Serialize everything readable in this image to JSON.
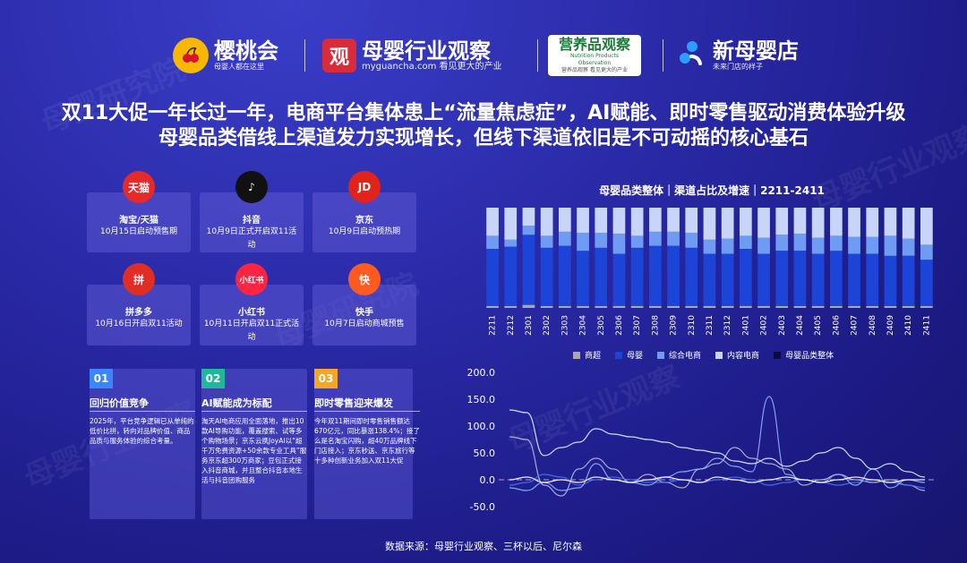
{
  "logos": {
    "yingtaohui": {
      "name": "樱桃会",
      "tagline": "母婴人都在这里"
    },
    "muying": {
      "mark": "观",
      "name": "母婴行业观察",
      "sub": "myguancha.com 看见更大的产业"
    },
    "yingyang": {
      "name": "营养品观察",
      "sub": "Nutrition Products Observation",
      "tagline": "营养品观察 看见更大的产业"
    },
    "xinmuying": {
      "name": "新母婴店",
      "tagline": "未来门店的样子"
    }
  },
  "headline": {
    "line1": "双11大促一年长过一年，电商平台集体患上“流量焦虑症”，AI赋能、即时零售驱动消费体验升级",
    "line2": "母婴品类借线上渠道发力实现增长，但线下渠道依旧是不可动摇的核心基石"
  },
  "platforms": [
    {
      "icon": "tmall-icon",
      "icon_text": "天猫",
      "color": "#e62a2a",
      "name": "淘宝/天猫",
      "desc": "10月15日启动预售期"
    },
    {
      "icon": "douyin-icon",
      "icon_text": "♪",
      "color": "#111111",
      "name": "抖音",
      "desc": "10月9日正式开启双11活动"
    },
    {
      "icon": "jd-icon",
      "icon_text": "JD",
      "color": "#e2231a",
      "name": "京东",
      "desc": "10月9日启动预热期"
    },
    {
      "icon": "pinduoduo-icon",
      "icon_text": "拼",
      "color": "#e02e24",
      "name": "拼多多",
      "desc": "10月16日开启双11活动"
    },
    {
      "icon": "xiaohongshu-icon",
      "icon_text": "小红书",
      "color": "#ff2442",
      "name": "小红书",
      "desc": "10月11日开启双11正式活动"
    },
    {
      "icon": "kuaishou-icon",
      "icon_text": "快",
      "color": "#ff5a1f",
      "name": "快手",
      "desc": "10月7日启动商城预售"
    }
  ],
  "insights": [
    {
      "num": "01",
      "color": "#3a86ff",
      "title": "回归价值竞争",
      "text": "2025年，平台竞争逻辑已从单纯的低价比拼，转向对品牌价值、商品品质与服务体验的综合考量。"
    },
    {
      "num": "02",
      "color": "#1fb89a",
      "title": "AI赋能成为标配",
      "text": "淘天AI电商应用全面落地，推出10款AI导购功能，覆盖搜索、试等多个购物场景；京东云携JoyAI以“超千万免费资源+50余款专业工具”服务京东超300万商家；豆包正式接入抖音商城，并且整合抖音本地生活与抖音团购服务"
    },
    {
      "num": "03",
      "color": "#f5a623",
      "title": "即时零售迎来爆发",
      "text": "今年双11期间即时零售销售额达670亿元，同比暴涨138.4%；接了么是名淘宝闪购，超40万品牌线下门店接入；京东秒送、京东旅行等十多种创新业务加入双11大促"
    }
  ],
  "chart_title": "母婴品类整体｜渠道占比及增速｜2211-2411",
  "chart_data": {
    "type": "bar",
    "title": "母婴品类整体｜渠道占比及增速｜2211-2411",
    "categories": [
      "2211",
      "2212",
      "2301",
      "2302",
      "2303",
      "2304",
      "2305",
      "2306",
      "2307",
      "2308",
      "2309",
      "2310",
      "2311",
      "2312",
      "2401",
      "2402",
      "2403",
      "2404",
      "2405",
      "2406",
      "2407",
      "2408",
      "2409",
      "2410",
      "2411"
    ],
    "series": [
      {
        "name": "商超",
        "color": "#a8a8a8",
        "values": [
          2,
          2,
          3,
          2,
          2,
          2,
          2,
          2,
          2,
          2,
          2,
          2,
          2,
          2,
          2,
          2,
          2,
          2,
          2,
          2,
          2,
          2,
          2,
          2,
          2
        ]
      },
      {
        "name": "母婴",
        "color": "#1c44d6",
        "values": [
          57,
          59,
          70,
          58,
          60,
          55,
          58,
          52,
          58,
          60,
          60,
          58,
          52,
          52,
          57,
          52,
          55,
          55,
          52,
          55,
          52,
          52,
          50,
          50,
          46
        ]
      },
      {
        "name": "综合电商",
        "color": "#6f9cf2",
        "values": [
          13,
          7,
          9,
          12,
          14,
          18,
          15,
          20,
          12,
          14,
          14,
          15,
          14,
          15,
          13,
          16,
          16,
          17,
          16,
          15,
          17,
          17,
          20,
          17,
          15
        ]
      },
      {
        "name": "内容电商",
        "color": "#c8d4f8",
        "values": [
          28,
          32,
          18,
          28,
          24,
          25,
          25,
          26,
          28,
          24,
          24,
          25,
          32,
          31,
          28,
          30,
          27,
          26,
          30,
          28,
          29,
          29,
          28,
          31,
          37
        ]
      }
    ],
    "line_chart": {
      "type": "line",
      "ylim": [
        -50,
        200
      ],
      "y_ticks": [
        "200.0",
        "150.0",
        "100.0",
        "50.0",
        "0.0",
        "-50.0"
      ],
      "series": [
        {
          "name": "商超",
          "color": "#b9b9d6",
          "values": [
            80,
            75,
            -10,
            -30,
            20,
            40,
            20,
            -5,
            10,
            -5,
            -15,
            20,
            30,
            60,
            40,
            30,
            20,
            -10,
            0,
            10,
            0,
            -5,
            0,
            -10,
            -20
          ]
        },
        {
          "name": "母婴",
          "color": "#4a6ff0",
          "values": [
            -10,
            -5,
            10,
            5,
            -10,
            0,
            5,
            0,
            -5,
            -5,
            0,
            -5,
            0,
            5,
            0,
            -10,
            -5,
            0,
            -5,
            -10,
            -5,
            0,
            -5,
            -10,
            -15
          ]
        },
        {
          "name": "综合电商",
          "color": "#8fb0ff",
          "values": [
            -15,
            -20,
            -5,
            -20,
            -15,
            30,
            0,
            -5,
            -10,
            5,
            15,
            20,
            40,
            25,
            15,
            155,
            10,
            0,
            -5,
            10,
            -10,
            20,
            -15,
            0,
            -5
          ]
        },
        {
          "name": "内容电商",
          "color": "#e4ecff",
          "values": [
            130,
            125,
            45,
            60,
            70,
            95,
            85,
            80,
            75,
            70,
            60,
            55,
            50,
            35,
            30,
            40,
            25,
            35,
            50,
            60,
            40,
            20,
            30,
            15,
            5
          ]
        },
        {
          "name": "母婴品类整体",
          "color": "#ffffff",
          "values": [
            0,
            5,
            -5,
            0,
            -5,
            5,
            0,
            -5,
            0,
            5,
            0,
            -5,
            5,
            0,
            -5,
            0,
            5,
            0,
            -5,
            0,
            5,
            0,
            -5,
            0,
            0
          ]
        }
      ]
    },
    "legend": [
      {
        "name": "商超",
        "color": "#a8a8a8"
      },
      {
        "name": "母婴",
        "color": "#1c44d6"
      },
      {
        "name": "综合电商",
        "color": "#6f9cf2"
      },
      {
        "name": "内容电商",
        "color": "#c8d4f8"
      },
      {
        "name": "母婴品类整体",
        "color": "#0b0b3d"
      }
    ]
  },
  "source": "数据来源：母婴行业观察、三杯以后、尼尔森",
  "watermarks": [
    "母婴研究院",
    "母婴行业观察",
    "观"
  ]
}
